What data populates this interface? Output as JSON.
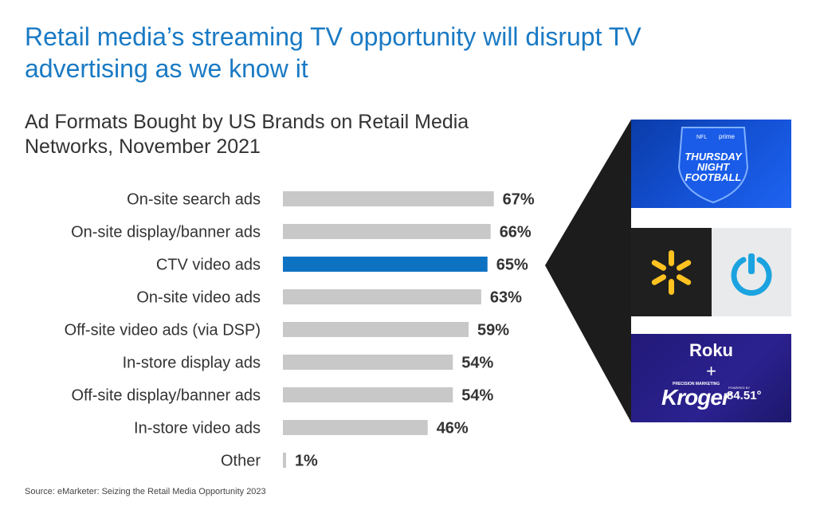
{
  "headline": "Retail media’s streaming TV opportunity will disrupt TV advertising as we know it",
  "chart_data": {
    "type": "bar",
    "orientation": "horizontal",
    "title": "Ad Formats Bought by US Brands on Retail Media Networks, November 2021",
    "categories": [
      "On-site search ads",
      "On-site display/banner ads",
      "CTV video ads",
      "On-site video ads",
      "Off-site video ads (via DSP)",
      "In-store display ads",
      "Off-site display/banner ads",
      "In-store video ads",
      "Other"
    ],
    "values": [
      67,
      66,
      65,
      63,
      59,
      54,
      54,
      46,
      1
    ],
    "value_labels": [
      "67%",
      "66%",
      "65%",
      "63%",
      "59%",
      "54%",
      "54%",
      "46%",
      "1%"
    ],
    "highlight_index": 2,
    "colors": {
      "default": "#c8c8c8",
      "highlight": "#0e72c2",
      "label": "#333333"
    },
    "xlabel": "",
    "ylabel": "",
    "xlim": [
      0,
      100
    ],
    "grid": false
  },
  "source": "Source: eMarketer: Seizing the Retail Media Opportunity 2023",
  "logos": {
    "tnf": {
      "brand_small": "prime",
      "line1": "THURSDAY",
      "line2": "NIGHT",
      "line3": "FOOTBALL"
    },
    "walmart": {
      "icon": "walmart-spark-icon",
      "color": "#ffc220"
    },
    "ibotta": {
      "icon": "ibotta-power-icon",
      "color": "#1aa3e0"
    },
    "roku": {
      "roku": "Roku",
      "plus": "+",
      "tagline": "PRECISION MARKETING",
      "kroger": "Kroger",
      "powered": "POWERED BY",
      "k8451": "84.51°"
    }
  }
}
